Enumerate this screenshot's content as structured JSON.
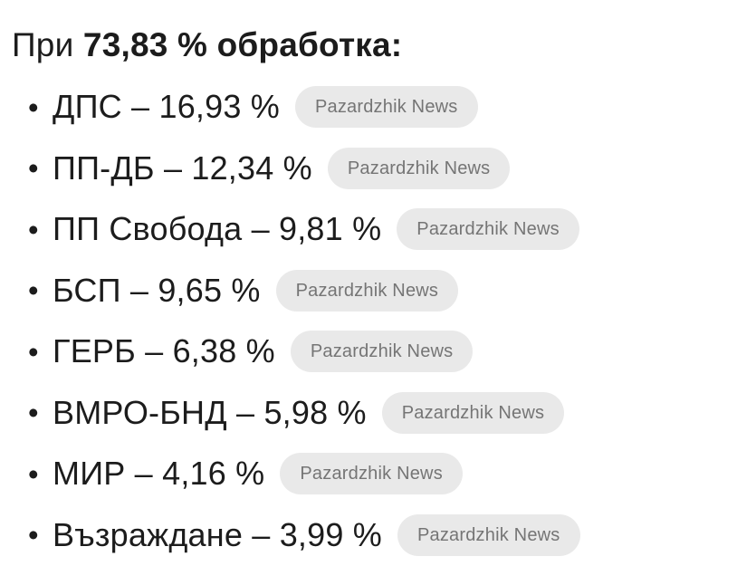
{
  "header": {
    "prefix": "При ",
    "processed_bold": "73,83 % обработка:"
  },
  "list": {
    "bullet": "•",
    "items": [
      {
        "text": "ДПС – 16,93 %",
        "badge": "Pazardzhik News"
      },
      {
        "text": "ПП-ДБ – 12,34 %",
        "badge": "Pazardzhik News"
      },
      {
        "text": "ПП Свобода – 9,81 %",
        "badge": "Pazardzhik News"
      },
      {
        "text": "БСП – 9,65 %",
        "badge": "Pazardzhik News"
      },
      {
        "text": "ГЕРБ – 6,38 %",
        "badge": "Pazardzhik News"
      },
      {
        "text": "ВМРО-БНД – 5,98 %",
        "badge": "Pazardzhik News"
      },
      {
        "text": "МИР – 4,16 %",
        "badge": "Pazardzhik News"
      },
      {
        "text": "Възраждане – 3,99 %",
        "badge": "Pazardzhik News"
      }
    ]
  },
  "colors": {
    "text": "#1c1c1c",
    "badge_background": "#e9e9e9",
    "badge_text": "#757575",
    "page_background": "#ffffff"
  }
}
